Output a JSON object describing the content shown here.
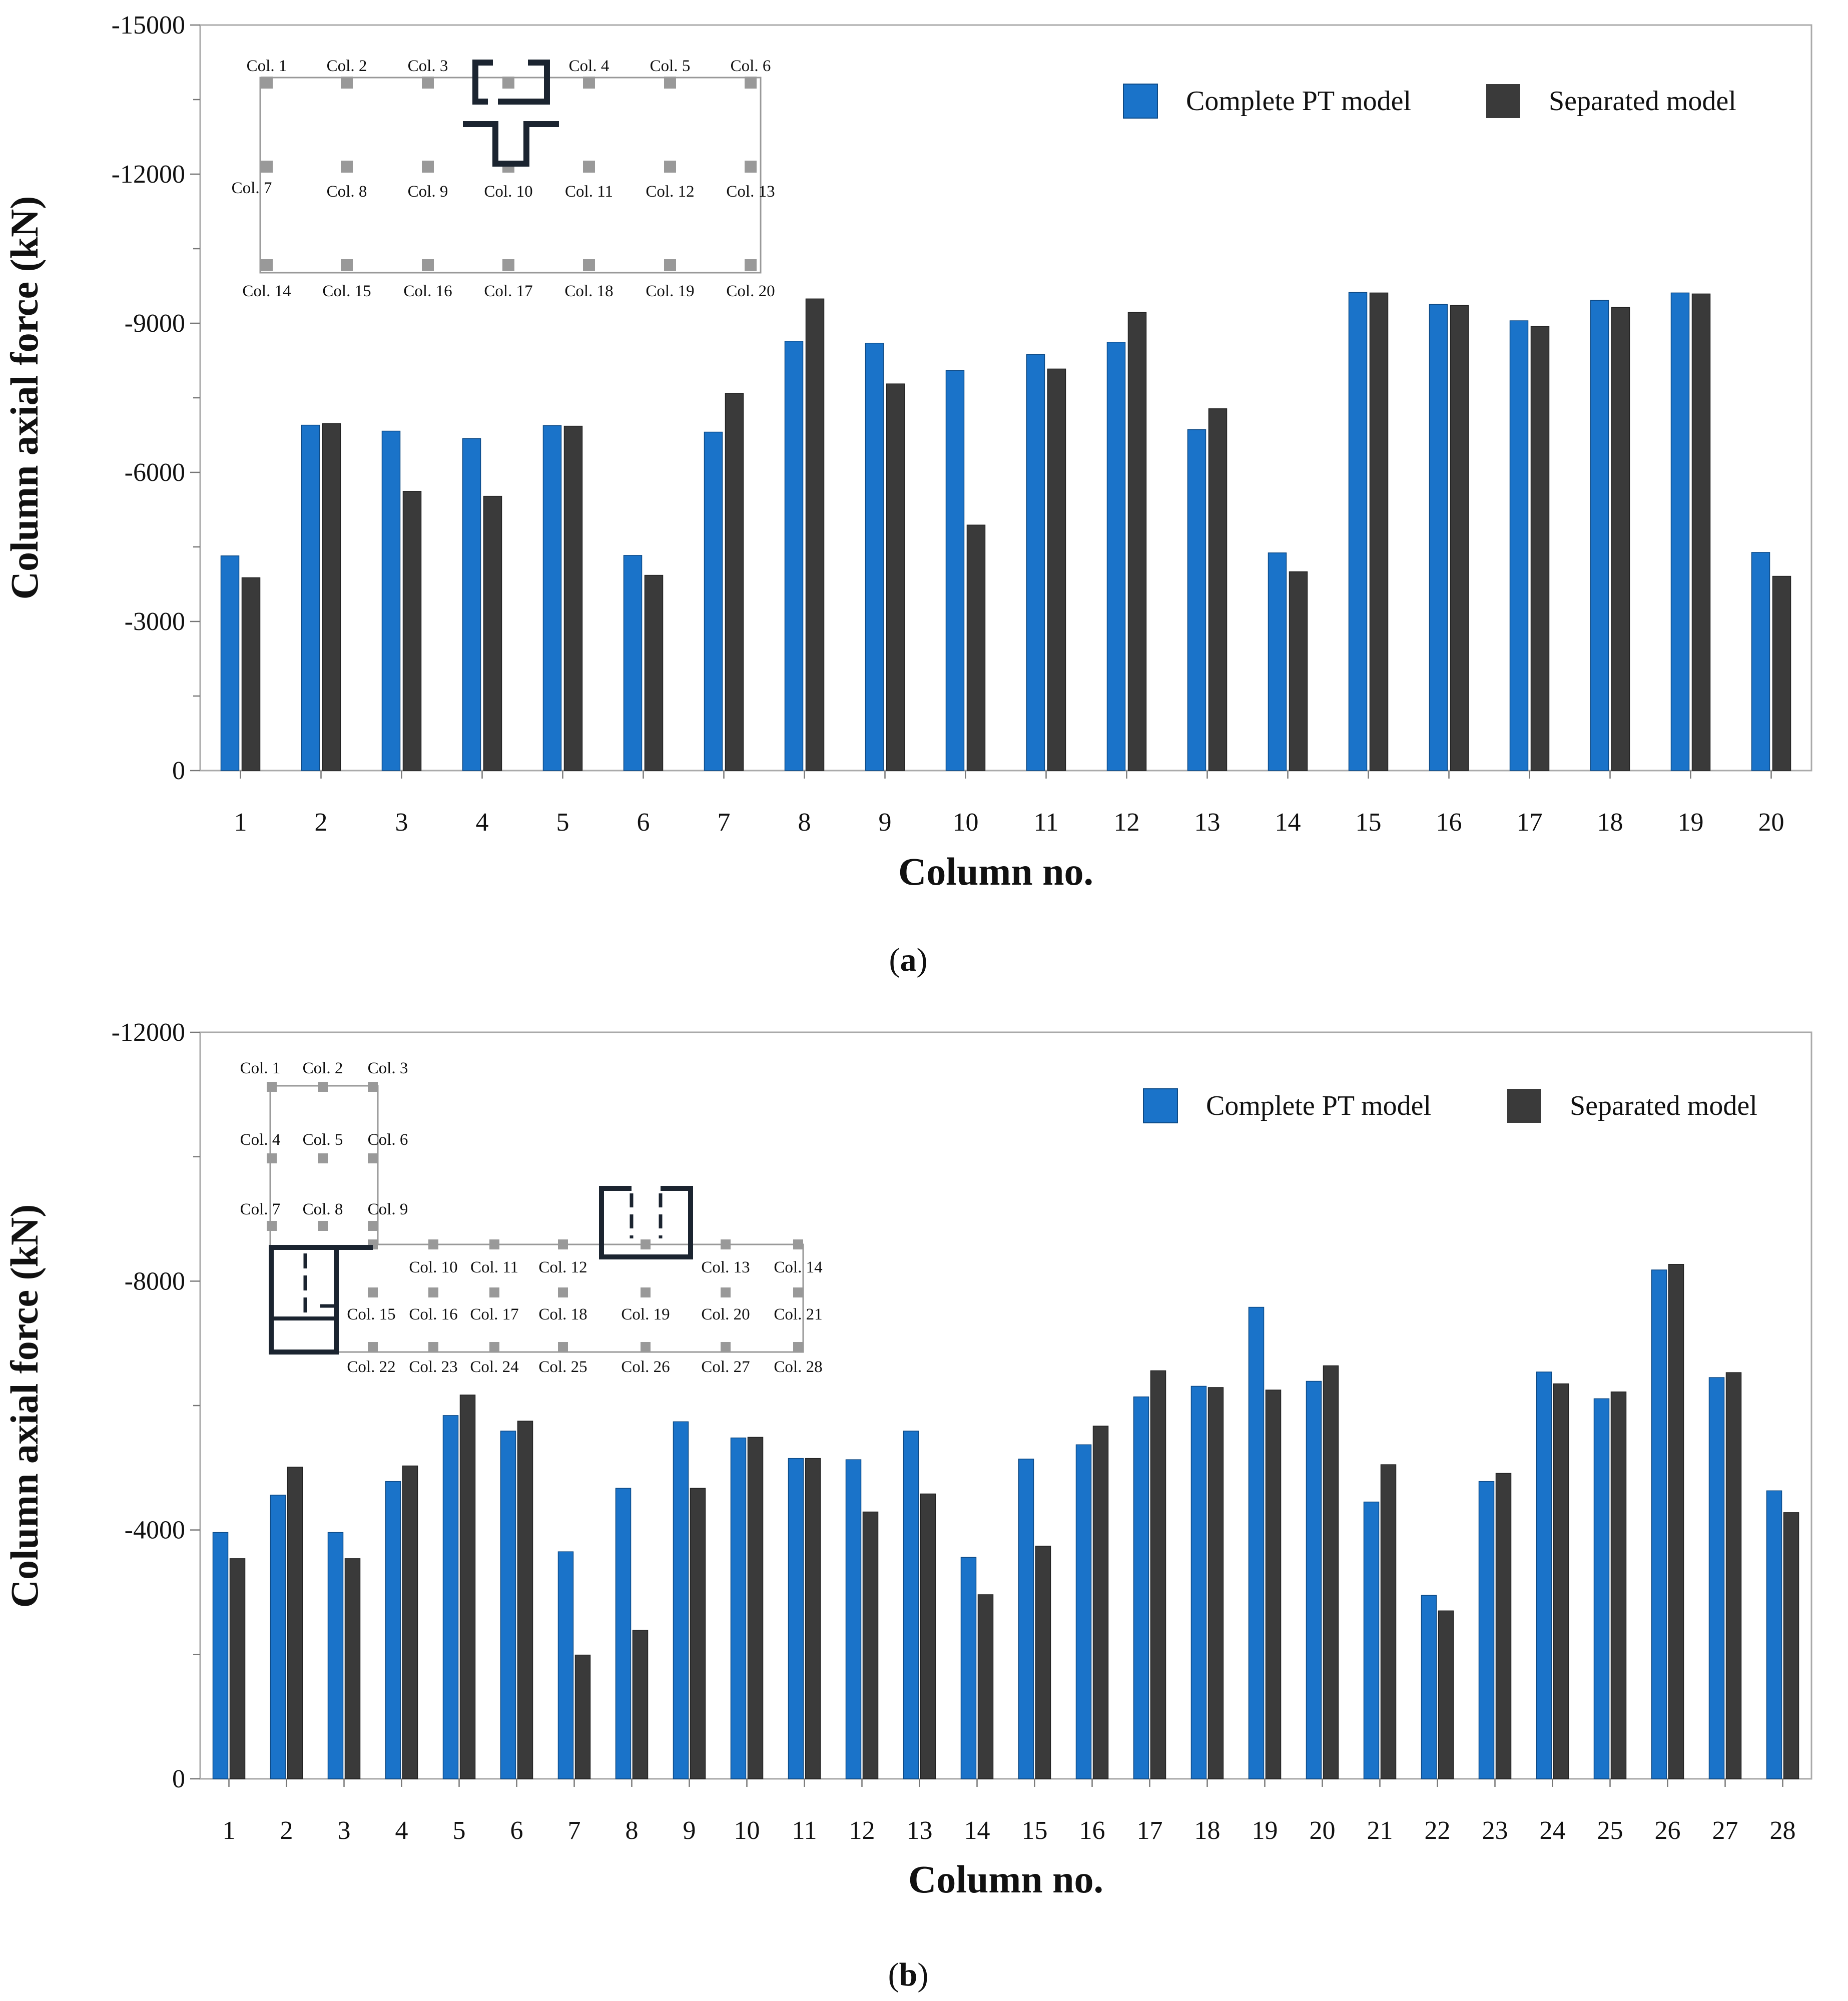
{
  "figure": {
    "caption_a": {
      "open": "(",
      "letter": "a",
      "close": ")"
    },
    "caption_b": {
      "open": "(",
      "letter": "b",
      "close": ")"
    }
  },
  "colors": {
    "complete": "#1a73c9",
    "separated": "#3a3a3a",
    "inset_column": "#999999",
    "wall": "#1b2430"
  },
  "legend": {
    "series": [
      "Complete PT model",
      "Separated model"
    ]
  },
  "insets": {
    "a_labels": [
      "Col. 1",
      "Col. 2",
      "Col. 3",
      "Col. 4",
      "Col. 5",
      "Col. 6",
      "Col. 7",
      "Col. 8",
      "Col. 9",
      "Col. 10",
      "Col. 11",
      "Col. 12",
      "Col. 13",
      "Col. 14",
      "Col. 15",
      "Col. 16",
      "Col. 17",
      "Col. 18",
      "Col. 19",
      "Col. 20"
    ],
    "b_labels": [
      "Col. 1",
      "Col. 2",
      "Col. 3",
      "Col. 4",
      "Col. 5",
      "Col. 6",
      "Col. 7",
      "Col. 8",
      "Col. 9",
      "Col. 10",
      "Col. 11",
      "Col. 12",
      "Col. 13",
      "Col. 14",
      "Col. 15",
      "Col. 16",
      "Col. 17",
      "Col. 18",
      "Col. 19",
      "Col. 20",
      "Col. 21",
      "Col. 22",
      "Col. 23",
      "Col. 24",
      "Col. 25",
      "Col. 26",
      "Col. 27",
      "Col. 28"
    ]
  },
  "chart_data": [
    {
      "id": "a",
      "type": "bar",
      "xlabel": "Column no.",
      "ylabel": "Column axial force (kN)",
      "ylim": [
        0,
        -15000
      ],
      "yticks": [
        0,
        -3000,
        -6000,
        -9000,
        -12000,
        -15000
      ],
      "yticks_minor_step": 1500,
      "legend_position": "top-right",
      "categories": [
        "1",
        "2",
        "3",
        "4",
        "5",
        "6",
        "7",
        "8",
        "9",
        "10",
        "11",
        "12",
        "13",
        "14",
        "15",
        "16",
        "17",
        "18",
        "19",
        "20"
      ],
      "series": [
        {
          "name": "Complete PT model",
          "values": [
            -4320,
            -6950,
            -6830,
            -6680,
            -6940,
            -4330,
            -6810,
            -8640,
            -8600,
            -8050,
            -8370,
            -8620,
            -6860,
            -4380,
            -9620,
            -9380,
            -9050,
            -9460,
            -9610,
            -4390
          ]
        },
        {
          "name": "Separated model",
          "values": [
            -3880,
            -6980,
            -5620,
            -5520,
            -6930,
            -3930,
            -7590,
            -9490,
            -7780,
            -4940,
            -8080,
            -9220,
            -7280,
            -4000,
            -9610,
            -9360,
            -8940,
            -9320,
            -9590,
            -3910
          ]
        }
      ]
    },
    {
      "id": "b",
      "type": "bar",
      "xlabel": "Column no.",
      "ylabel": "Column axial force (kN)",
      "ylim": [
        0,
        -12000
      ],
      "yticks": [
        0,
        -4000,
        -8000,
        -12000
      ],
      "yticks_minor_step": 2000,
      "legend_position": "top-right",
      "categories": [
        "1",
        "2",
        "3",
        "4",
        "5",
        "6",
        "7",
        "8",
        "9",
        "10",
        "11",
        "12",
        "13",
        "14",
        "15",
        "16",
        "17",
        "18",
        "19",
        "20",
        "21",
        "22",
        "23",
        "24",
        "25",
        "26",
        "27",
        "28"
      ],
      "series": [
        {
          "name": "Complete PT model",
          "values": [
            -3960,
            -4560,
            -3960,
            -4780,
            -5840,
            -5590,
            -3650,
            -4670,
            -5740,
            -5480,
            -5150,
            -5130,
            -5590,
            -3560,
            -5140,
            -5370,
            -6140,
            -6310,
            -7580,
            -6390,
            -4450,
            -2950,
            -4780,
            -6540,
            -6110,
            -8180,
            -6450,
            -4630
          ]
        },
        {
          "name": "Separated model",
          "values": [
            -3540,
            -5010,
            -3540,
            -5030,
            -6170,
            -5750,
            -1990,
            -2390,
            -4670,
            -5490,
            -5150,
            -4290,
            -4580,
            -2960,
            -3740,
            -5670,
            -6560,
            -6290,
            -6250,
            -6640,
            -5050,
            -2700,
            -4910,
            -6350,
            -6220,
            -8270,
            -6530,
            -4280
          ]
        }
      ]
    }
  ]
}
